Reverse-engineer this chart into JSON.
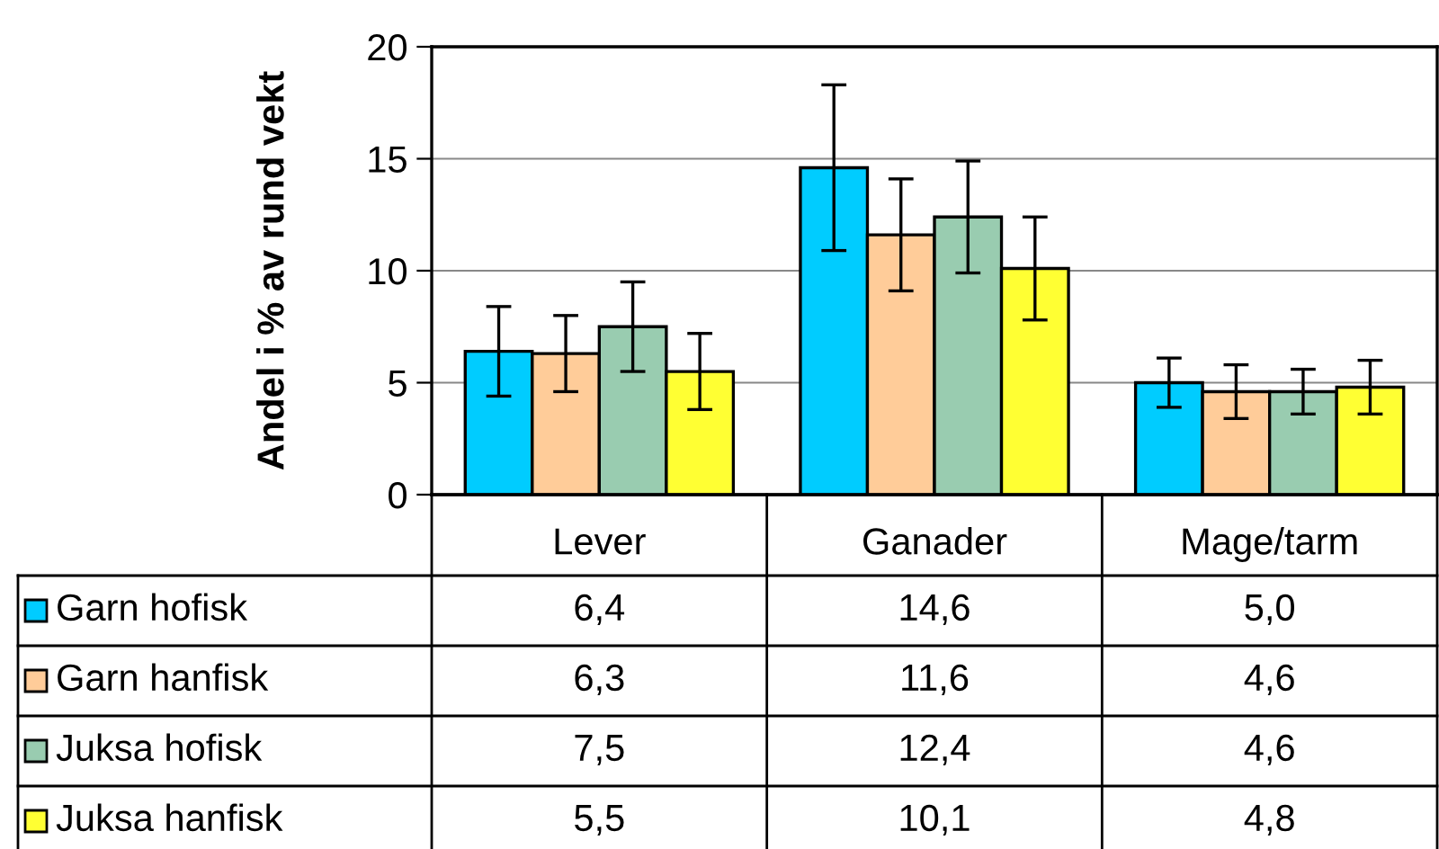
{
  "chart_data": {
    "type": "bar",
    "ylabel": "Andel i % av rund vekt",
    "categories": [
      "Lever",
      "Ganader",
      "Mage/tarm"
    ],
    "series": [
      {
        "name": "Garn hofisk",
        "color": "#00ccff",
        "values": [
          6.4,
          14.6,
          5.0
        ],
        "value_labels": [
          "6,4",
          "14,6",
          "5,0"
        ],
        "errors": [
          2.0,
          3.7,
          1.1
        ]
      },
      {
        "name": "Garn hanfisk",
        "color": "#ffcc99",
        "values": [
          6.3,
          11.6,
          4.6
        ],
        "value_labels": [
          "6,3",
          "11,6",
          "4,6"
        ],
        "errors": [
          1.7,
          2.5,
          1.2
        ]
      },
      {
        "name": "Juksa hofisk",
        "color": "#99ccb0",
        "values": [
          7.5,
          12.4,
          4.6
        ],
        "value_labels": [
          "7,5",
          "12,4",
          "4,6"
        ],
        "errors": [
          2.0,
          2.5,
          1.0
        ]
      },
      {
        "name": "Juksa hanfisk",
        "color": "#ffff33",
        "values": [
          5.5,
          10.1,
          4.8
        ],
        "value_labels": [
          "5,5",
          "10,1",
          "4,8"
        ],
        "errors": [
          1.7,
          2.3,
          1.2
        ]
      }
    ],
    "ylim": [
      0,
      20
    ],
    "yticks": [
      0,
      5,
      10,
      15,
      20
    ],
    "grid": "y",
    "legend": "bottom"
  }
}
